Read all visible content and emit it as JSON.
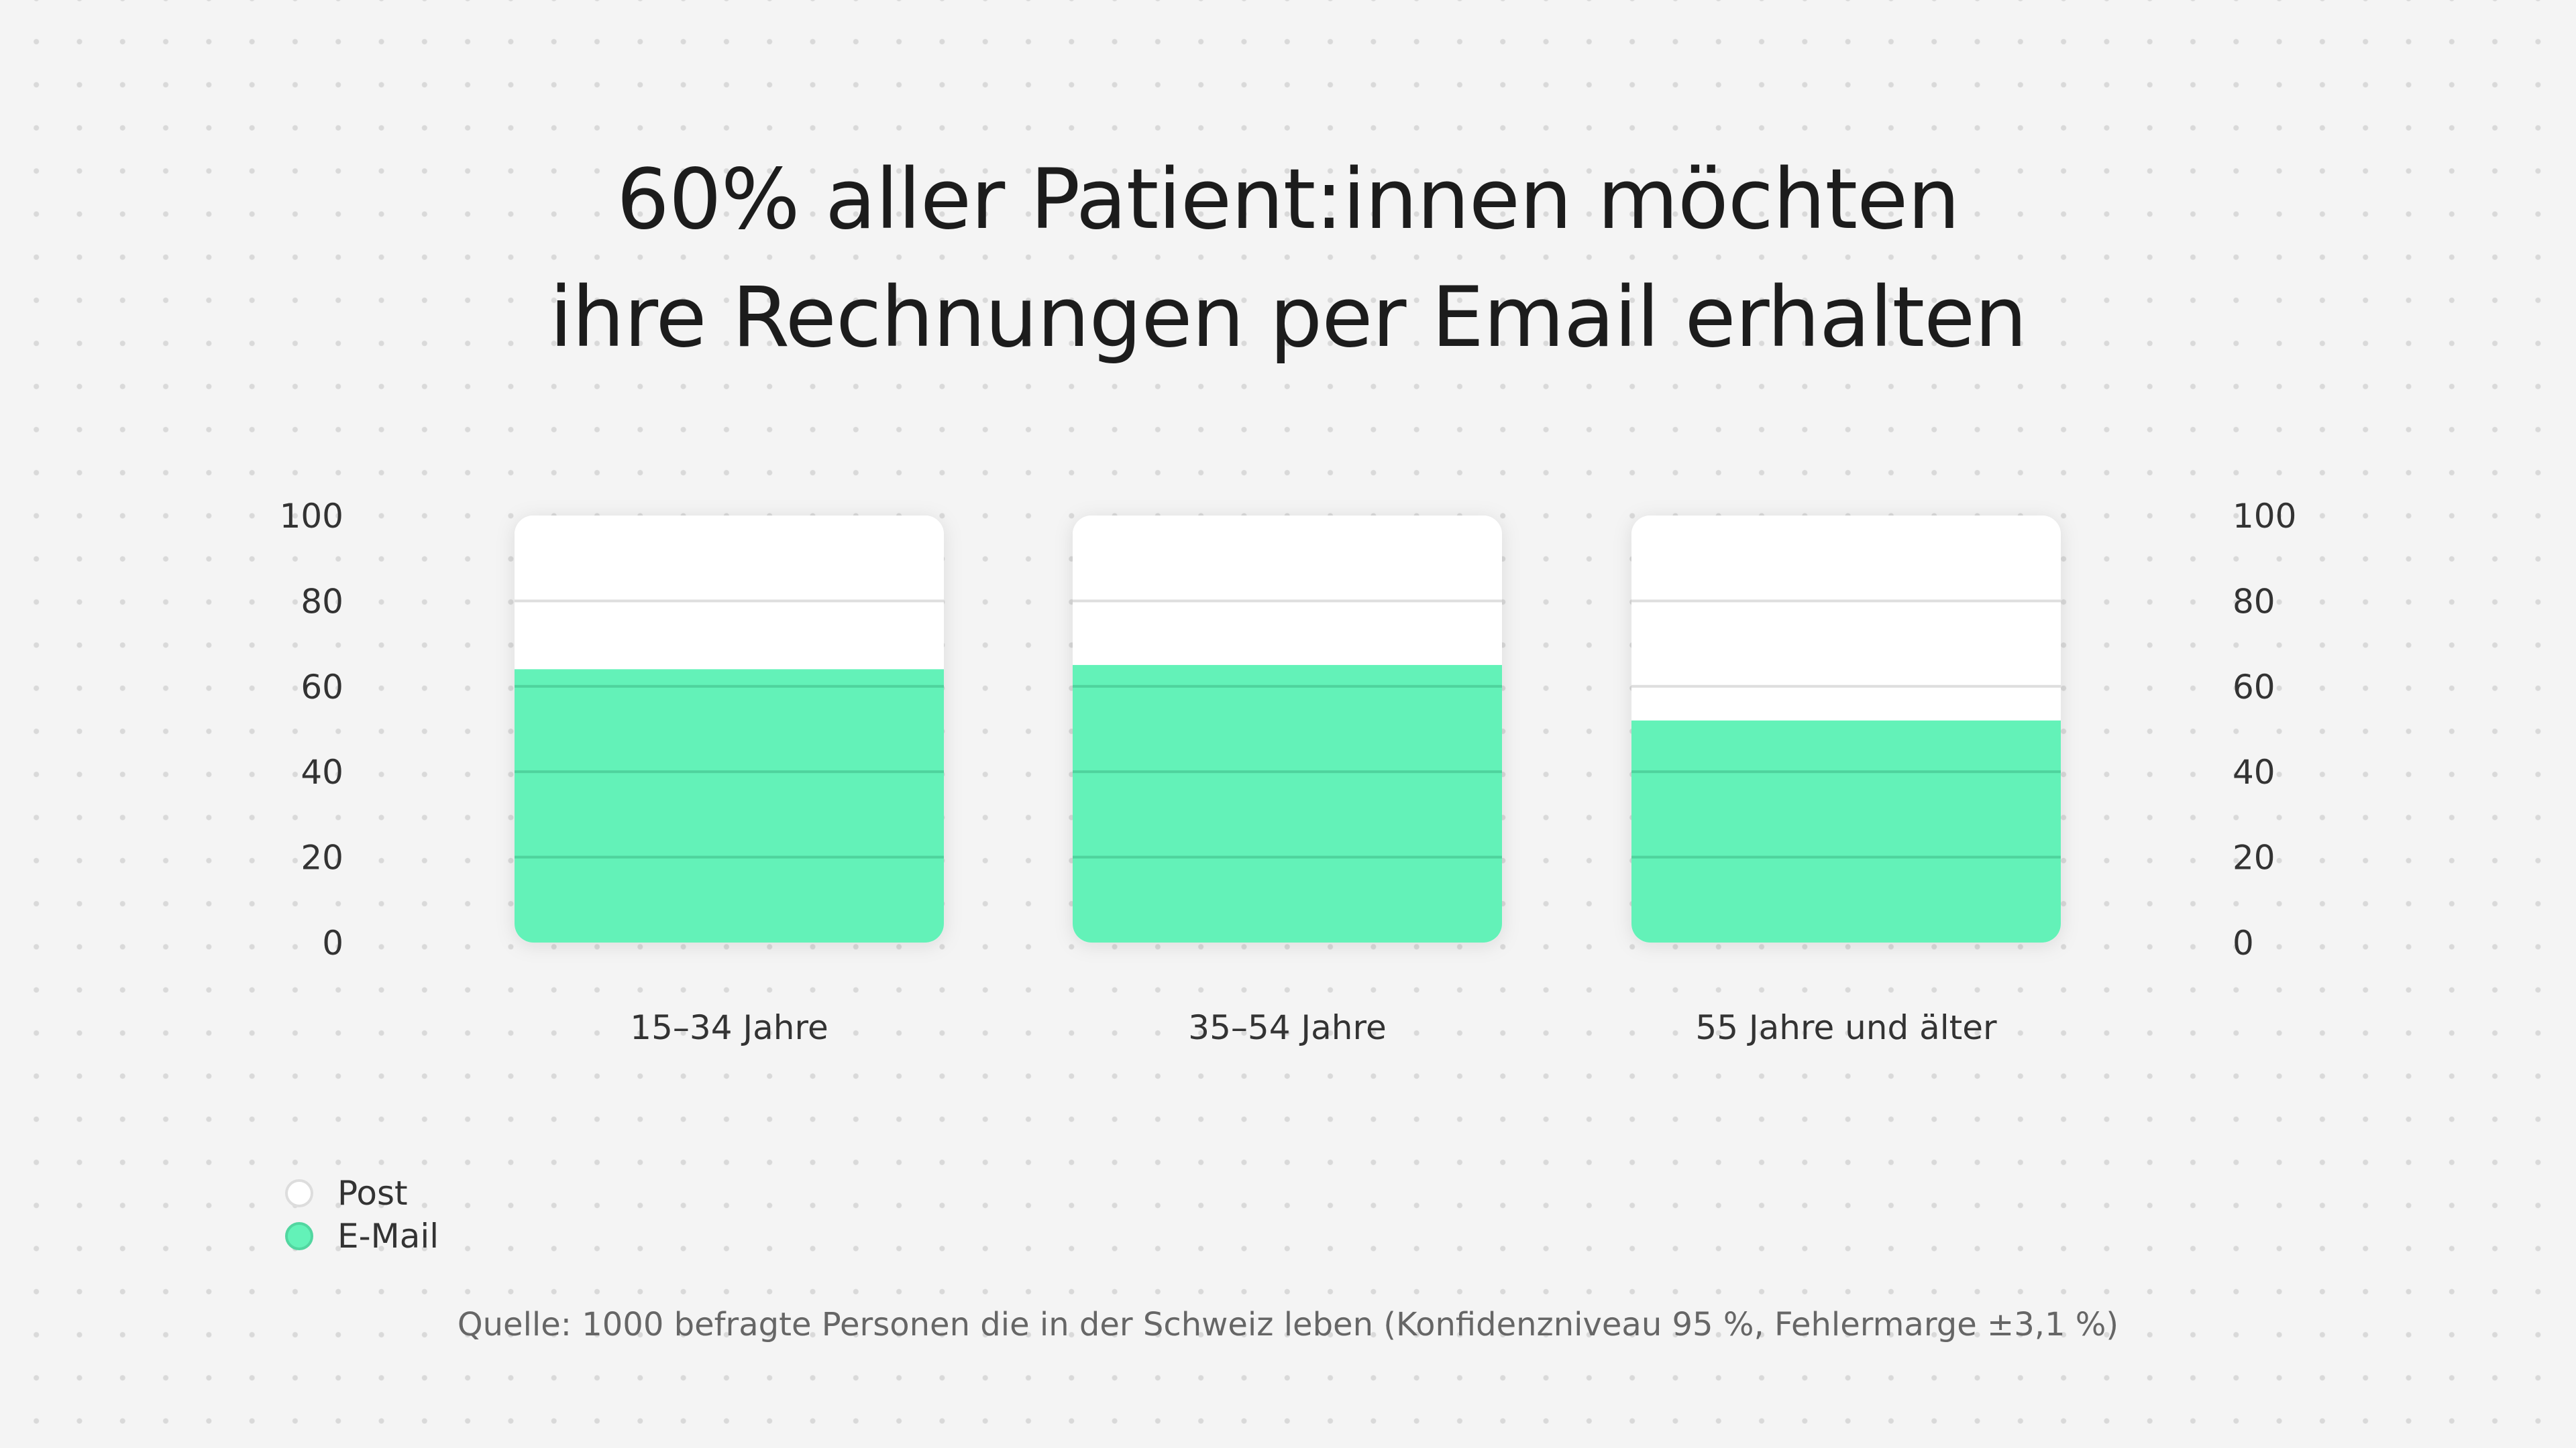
{
  "title": [
    "60% aller Patient:innen möchten",
    "ihre Rechnungen per Email erhalten"
  ],
  "chart_data": {
    "type": "bar",
    "stacked": true,
    "categories": [
      "15–34 Jahre",
      "35–54 Jahre",
      "55 Jahre und älter"
    ],
    "series": [
      {
        "name": "E-Mail",
        "values": [
          64,
          65,
          52
        ],
        "color": "#63f2b8"
      },
      {
        "name": "Post",
        "values": [
          36,
          35,
          48
        ],
        "color": "#ffffff"
      }
    ],
    "ylim": [
      0,
      100
    ],
    "yticks": [
      "0",
      "20",
      "40",
      "60",
      "80",
      "100"
    ],
    "grid": true,
    "legend_position": "bottom-left"
  },
  "legend": [
    {
      "label": "Post",
      "color": "#ffffff"
    },
    {
      "label": "E-Mail",
      "color": "#63f2b8"
    }
  ],
  "source": "Quelle: 1000 befragte Personen die in der Schweiz leben (Konfidenzniveau 95 %, Fehlermarge ±3,1 %)"
}
